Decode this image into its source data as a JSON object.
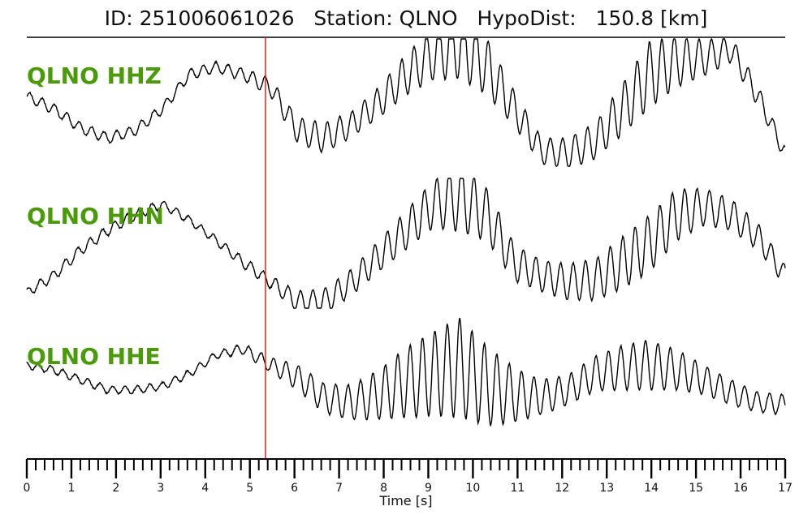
{
  "header": {
    "id_label": "ID:",
    "id_value": "251006061026",
    "station_label": "Station:",
    "station_value": "QLNO",
    "dist_label": "HypoDist:",
    "dist_value": "150.8",
    "dist_unit": "[km]"
  },
  "colors": {
    "trace": "#000000",
    "pick": "#e8231c",
    "label": "#4a9a0a",
    "axis": "#000000"
  },
  "chart_data": {
    "type": "line",
    "xlabel": "Time [s]",
    "xlim": [
      0,
      17
    ],
    "x_major_ticks": [
      0,
      1,
      2,
      3,
      4,
      5,
      6,
      7,
      8,
      9,
      10,
      11,
      12,
      13,
      14,
      15,
      16,
      17
    ],
    "x_minor_step": 0.2,
    "pick_time": 5.35,
    "channels": [
      {
        "name": "QLNO HHZ",
        "envelope": [
          0.55,
          0.45,
          0.3,
          0.22,
          0.28,
          0.45,
          0.72,
          0.78,
          0.72,
          0.62,
          0.28,
          0.22,
          0.33,
          0.5,
          0.72,
          0.88,
          0.95,
          0.78,
          0.45,
          0.12,
          0.1,
          0.2,
          0.45,
          0.72,
          0.82,
          0.85,
          0.92,
          0.55,
          0.1
        ],
        "osc": [
          0.04,
          0.04,
          0.04,
          0.04,
          0.04,
          0.04,
          0.04,
          0.04,
          0.05,
          0.07,
          0.1,
          0.12,
          0.1,
          0.12,
          0.16,
          0.2,
          0.26,
          0.22,
          0.14,
          0.1,
          0.12,
          0.14,
          0.2,
          0.26,
          0.2,
          0.14,
          0.1,
          0.08,
          0.06
        ]
      },
      {
        "name": "QLNO HHN",
        "envelope": [
          0.12,
          0.25,
          0.45,
          0.6,
          0.72,
          0.8,
          0.68,
          0.52,
          0.35,
          0.2,
          0.05,
          0.05,
          0.2,
          0.4,
          0.6,
          0.8,
          0.85,
          0.72,
          0.35,
          0.25,
          0.2,
          0.22,
          0.35,
          0.5,
          0.72,
          0.78,
          0.72,
          0.55,
          0.25
        ],
        "osc": [
          0.03,
          0.04,
          0.04,
          0.04,
          0.04,
          0.03,
          0.03,
          0.03,
          0.04,
          0.05,
          0.08,
          0.1,
          0.1,
          0.12,
          0.15,
          0.18,
          0.26,
          0.2,
          0.14,
          0.12,
          0.14,
          0.16,
          0.2,
          0.22,
          0.2,
          0.14,
          0.12,
          0.1,
          0.08
        ]
      },
      {
        "name": "QLNO HHE",
        "envelope": [
          0.62,
          0.58,
          0.5,
          0.42,
          0.42,
          0.45,
          0.55,
          0.7,
          0.75,
          0.62,
          0.52,
          0.35,
          0.32,
          0.38,
          0.48,
          0.55,
          0.6,
          0.45,
          0.38,
          0.36,
          0.42,
          0.55,
          0.6,
          0.62,
          0.58,
          0.5,
          0.4,
          0.32,
          0.3
        ],
        "osc": [
          0.03,
          0.03,
          0.03,
          0.03,
          0.03,
          0.03,
          0.03,
          0.03,
          0.04,
          0.06,
          0.1,
          0.12,
          0.14,
          0.2,
          0.28,
          0.34,
          0.4,
          0.32,
          0.22,
          0.14,
          0.12,
          0.14,
          0.18,
          0.2,
          0.16,
          0.12,
          0.1,
          0.08,
          0.08
        ]
      }
    ]
  }
}
